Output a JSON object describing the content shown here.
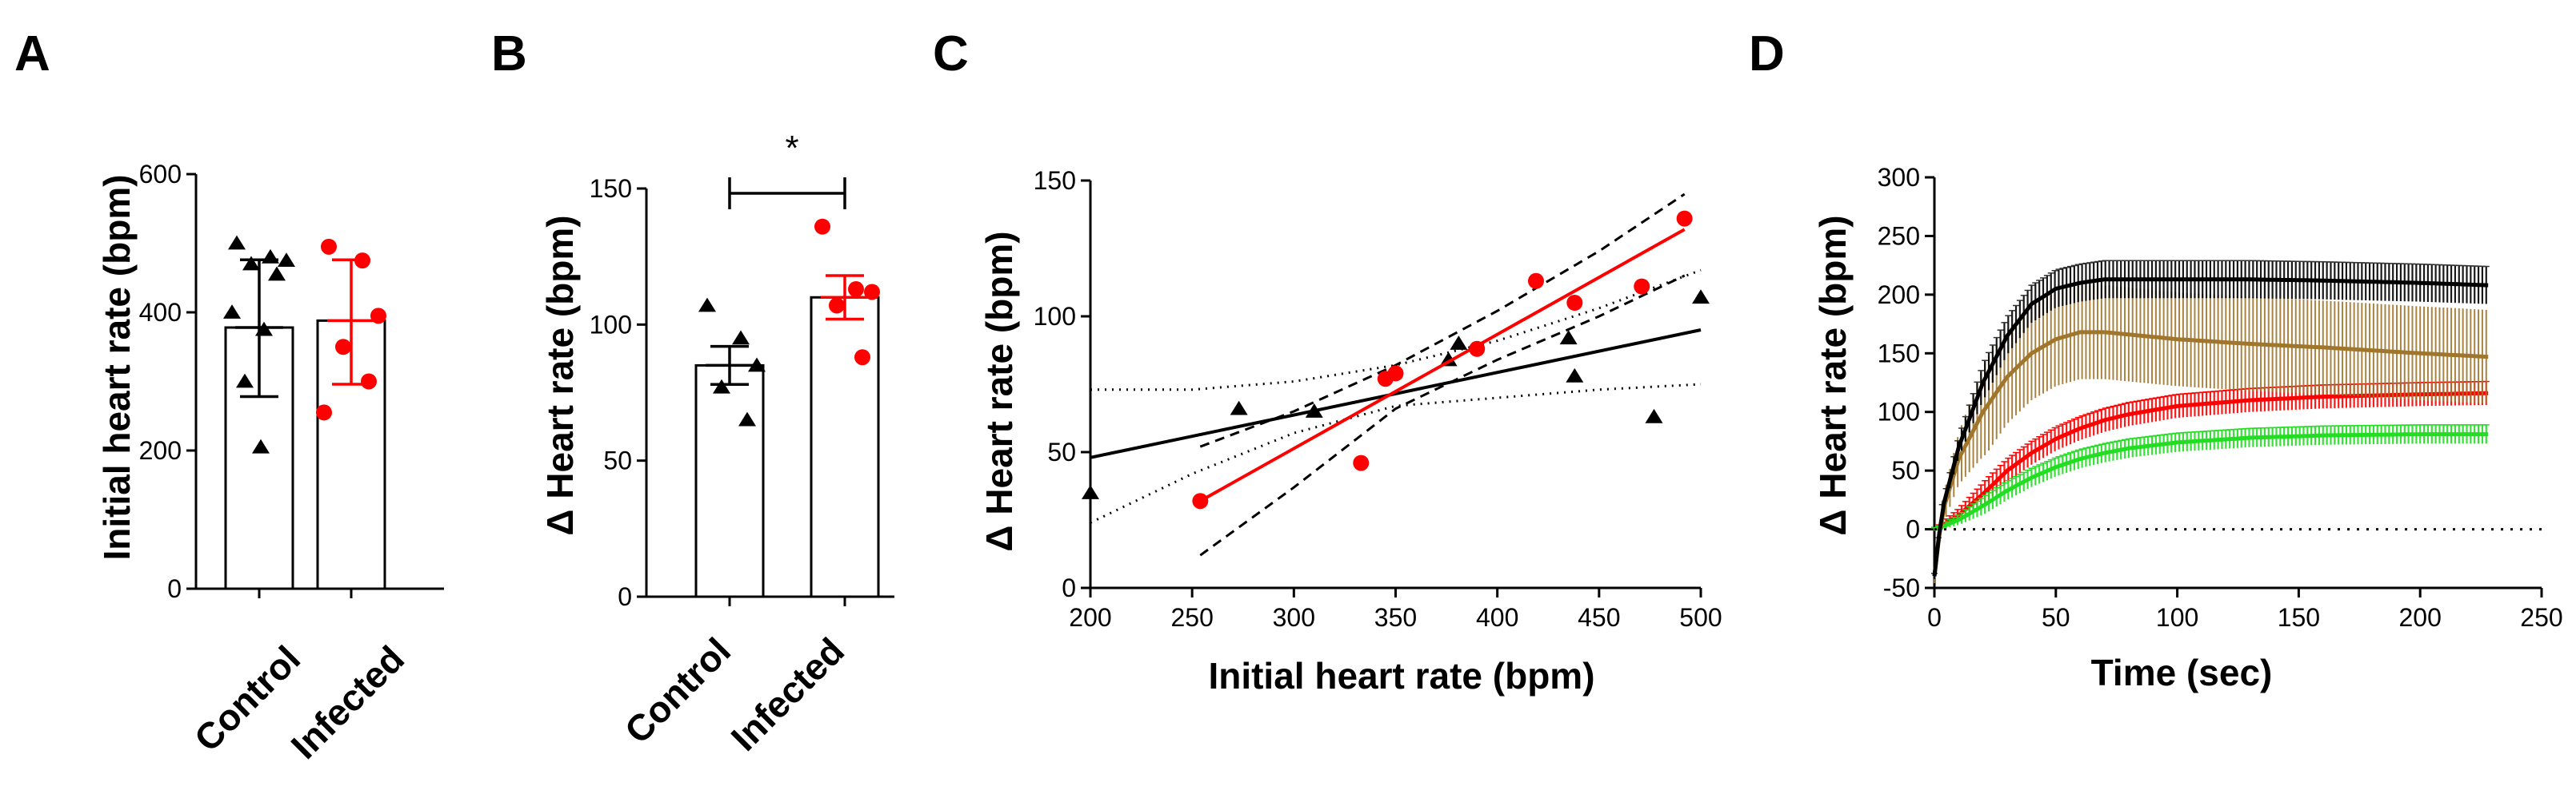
{
  "colors": {
    "control": "#000000",
    "infected": "#ff0000",
    "brown": "#a0762d",
    "green": "#22dd22"
  },
  "chart_data": [
    {
      "panel": "A",
      "type": "bar",
      "ylabel": "Initial heart rate (bpm)",
      "xlabel": "",
      "ylim": [
        0,
        600
      ],
      "yticks": [
        0,
        200,
        400,
        600
      ],
      "categories": [
        "Control",
        "Infected"
      ],
      "series": [
        {
          "name": "Control",
          "mean": 378,
          "sd_low": 278,
          "sd_high": 476,
          "points": [
            500,
            480,
            475,
            470,
            455,
            400,
            375,
            300,
            205
          ]
        },
        {
          "name": "Infected",
          "mean": 388,
          "sd_low": 296,
          "sd_high": 476,
          "points": [
            495,
            475,
            395,
            350,
            300,
            255
          ]
        }
      ]
    },
    {
      "panel": "B",
      "type": "bar",
      "ylabel": "Δ Heart rate (bpm)",
      "xlabel": "",
      "ylim": [
        0,
        150
      ],
      "yticks": [
        0,
        50,
        100,
        150
      ],
      "categories": [
        "Control",
        "Infected"
      ],
      "significance": "*",
      "series": [
        {
          "name": "Control",
          "mean": 85,
          "sem_low": 78,
          "sem_high": 92,
          "points": [
            107,
            95,
            85,
            77,
            65
          ]
        },
        {
          "name": "Infected",
          "mean": 110,
          "sem_low": 102,
          "sem_high": 118,
          "points": [
            136,
            113,
            112,
            107,
            88
          ]
        }
      ]
    },
    {
      "panel": "C",
      "type": "scatter",
      "xlabel": "Initial heart rate (bpm)",
      "ylabel": "Δ Heart rate (bpm)",
      "xlim": [
        200,
        500
      ],
      "ylim": [
        0,
        150
      ],
      "xticks": [
        200,
        250,
        300,
        350,
        400,
        450,
        500
      ],
      "yticks": [
        0,
        50,
        100,
        150
      ],
      "series": [
        {
          "name": "Control",
          "marker": "triangle",
          "points": [
            [
              200,
              35
            ],
            [
              273,
              66
            ],
            [
              310,
              65
            ],
            [
              376,
              84
            ],
            [
              381,
              90
            ],
            [
              435,
              92
            ],
            [
              438,
              78
            ],
            [
              477,
              63
            ],
            [
              500,
              107
            ]
          ],
          "fit": [
            [
              200,
              48
            ],
            [
              500,
              95
            ]
          ],
          "ci_upper": [
            [
              200,
              73
            ],
            [
              250,
              73
            ],
            [
              300,
              76
            ],
            [
              350,
              82
            ],
            [
              400,
              91
            ],
            [
              450,
              103
            ],
            [
              500,
              117
            ]
          ],
          "ci_lower": [
            [
              200,
              24
            ],
            [
              250,
              42
            ],
            [
              300,
              57
            ],
            [
              350,
              67
            ],
            [
              400,
              70
            ],
            [
              450,
              73
            ],
            [
              500,
              75
            ]
          ]
        },
        {
          "name": "Infected",
          "marker": "circle",
          "points": [
            [
              254,
              32
            ],
            [
              333,
              46
            ],
            [
              345,
              77
            ],
            [
              350,
              79
            ],
            [
              390,
              88
            ],
            [
              419,
              113
            ],
            [
              438,
              105
            ],
            [
              471,
              111
            ],
            [
              492,
              136
            ]
          ],
          "fit": [
            [
              254,
              32
            ],
            [
              492,
              132
            ]
          ],
          "ci_upper": [
            [
              254,
              52
            ],
            [
              300,
              65
            ],
            [
              350,
              82
            ],
            [
              400,
              102
            ],
            [
              450,
              124
            ],
            [
              492,
              145
            ]
          ],
          "ci_lower": [
            [
              254,
              12
            ],
            [
              300,
              37
            ],
            [
              350,
              66
            ],
            [
              400,
              84
            ],
            [
              450,
              100
            ],
            [
              492,
              115
            ]
          ]
        }
      ]
    },
    {
      "panel": "D",
      "type": "line",
      "xlabel": "Time (sec)",
      "ylabel": "Δ Heart rate (bpm)",
      "xlim": [
        0,
        250
      ],
      "ylim": [
        -50,
        300
      ],
      "xticks": [
        0,
        50,
        100,
        150,
        200,
        250
      ],
      "yticks": [
        -50,
        0,
        50,
        100,
        150,
        200,
        250,
        300
      ],
      "series": [
        {
          "name": "black",
          "color": "#000000",
          "x": [
            0,
            3,
            10,
            20,
            30,
            40,
            50,
            60,
            70,
            80,
            100,
            130,
            160,
            200,
            228
          ],
          "values": [
            -40,
            15,
            70,
            125,
            165,
            192,
            205,
            210,
            213,
            213,
            213,
            213,
            212,
            210,
            208
          ],
          "error": 16
        },
        {
          "name": "brown",
          "color": "#a0762d",
          "x": [
            0,
            3,
            10,
            20,
            30,
            40,
            50,
            60,
            70,
            80,
            100,
            130,
            160,
            200,
            228
          ],
          "values": [
            -40,
            12,
            60,
            100,
            130,
            150,
            162,
            168,
            168,
            166,
            162,
            158,
            155,
            150,
            147
          ],
          "error": 40
        },
        {
          "name": "red",
          "color": "#ff0000",
          "x": [
            0,
            3,
            10,
            20,
            30,
            40,
            50,
            60,
            70,
            80,
            100,
            130,
            160,
            200,
            228
          ],
          "values": [
            0,
            3,
            12,
            30,
            50,
            65,
            77,
            86,
            93,
            98,
            105,
            110,
            113,
            115,
            116
          ],
          "error": 10
        },
        {
          "name": "green",
          "color": "#22dd22",
          "x": [
            0,
            3,
            10,
            20,
            30,
            40,
            50,
            60,
            70,
            80,
            100,
            130,
            160,
            200,
            228
          ],
          "values": [
            0,
            2,
            8,
            20,
            33,
            44,
            53,
            60,
            65,
            69,
            74,
            78,
            80,
            81,
            81
          ],
          "error": 8
        },
        {
          "name": "zero-line",
          "style": "dotted",
          "x": [
            0,
            250
          ],
          "values": [
            0,
            0
          ]
        }
      ]
    }
  ]
}
